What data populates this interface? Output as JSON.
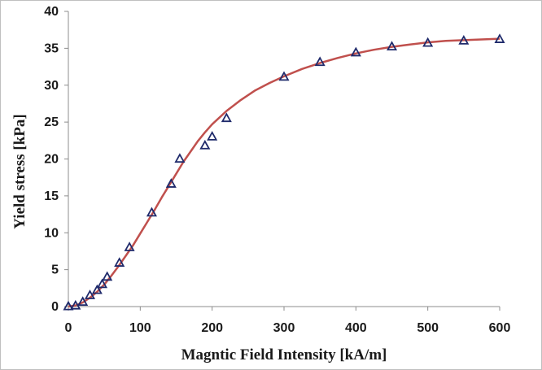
{
  "chart_data": {
    "type": "scatter",
    "title": "",
    "xlabel": "Magntic Field Intensity [kA/m]",
    "ylabel": "Yield stress [kPa]",
    "xlim": [
      0,
      600
    ],
    "ylim": [
      0,
      40
    ],
    "xticks": [
      0,
      100,
      200,
      300,
      400,
      500,
      600
    ],
    "yticks": [
      0,
      5,
      10,
      15,
      20,
      25,
      30,
      35,
      40
    ],
    "grid": false,
    "legend": "none",
    "series": [
      {
        "type": "scatter",
        "marker": "triangle-open",
        "color": "#1f2a6b",
        "points": [
          [
            0,
            0
          ],
          [
            10,
            0.1
          ],
          [
            20,
            0.6
          ],
          [
            30,
            1.5
          ],
          [
            40,
            2.2
          ],
          [
            47,
            3.0
          ],
          [
            54,
            4.0
          ],
          [
            71,
            5.9
          ],
          [
            85,
            8.0
          ],
          [
            116,
            12.7
          ],
          [
            143,
            16.6
          ],
          [
            155,
            20.0
          ],
          [
            190,
            21.8
          ],
          [
            200,
            23.0
          ],
          [
            220,
            25.5
          ],
          [
            300,
            31.1
          ],
          [
            350,
            33.1
          ],
          [
            400,
            34.4
          ],
          [
            450,
            35.2
          ],
          [
            500,
            35.7
          ],
          [
            550,
            36.0
          ],
          [
            600,
            36.2
          ]
        ]
      },
      {
        "type": "line",
        "color": "#c0504d",
        "points": [
          [
            0,
            0
          ],
          [
            10,
            0.15
          ],
          [
            20,
            0.55
          ],
          [
            30,
            1.2
          ],
          [
            40,
            2.0
          ],
          [
            50,
            3.0
          ],
          [
            60,
            4.2
          ],
          [
            70,
            5.5
          ],
          [
            80,
            6.9
          ],
          [
            90,
            8.3
          ],
          [
            100,
            9.9
          ],
          [
            110,
            11.5
          ],
          [
            120,
            13.1
          ],
          [
            130,
            14.8
          ],
          [
            140,
            16.4
          ],
          [
            150,
            18.0
          ],
          [
            160,
            19.6
          ],
          [
            170,
            21.0
          ],
          [
            180,
            22.4
          ],
          [
            190,
            23.6
          ],
          [
            200,
            24.7
          ],
          [
            210,
            25.6
          ],
          [
            220,
            26.5
          ],
          [
            240,
            28.0
          ],
          [
            260,
            29.3
          ],
          [
            280,
            30.3
          ],
          [
            300,
            31.2
          ],
          [
            325,
            32.2
          ],
          [
            350,
            33.0
          ],
          [
            375,
            33.7
          ],
          [
            400,
            34.3
          ],
          [
            425,
            34.8
          ],
          [
            450,
            35.2
          ],
          [
            475,
            35.5
          ],
          [
            500,
            35.8
          ],
          [
            525,
            36.0
          ],
          [
            550,
            36.1
          ],
          [
            575,
            36.2
          ],
          [
            600,
            36.3
          ]
        ]
      }
    ]
  }
}
